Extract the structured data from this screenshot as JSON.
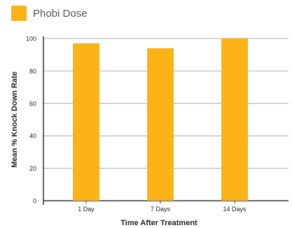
{
  "legend": {
    "label": "Phobi Dose"
  },
  "colors": {
    "bar": "#FBB316",
    "axis": "#333333",
    "grid": "#9a9a9a",
    "text": "#222222"
  },
  "chart_data": {
    "type": "bar",
    "title": "",
    "xlabel": "Time After Treatment",
    "ylabel": "Mean % Knock Down Rate",
    "categories": [
      "1 Day",
      "7 Days",
      "14 Days"
    ],
    "series": [
      {
        "name": "Phobi Dose",
        "values": [
          97,
          94,
          100
        ]
      }
    ],
    "ylim": [
      0,
      100
    ],
    "yticks": [
      0,
      20,
      40,
      60,
      80,
      100
    ],
    "grid": true,
    "legend_position": "top-left"
  }
}
